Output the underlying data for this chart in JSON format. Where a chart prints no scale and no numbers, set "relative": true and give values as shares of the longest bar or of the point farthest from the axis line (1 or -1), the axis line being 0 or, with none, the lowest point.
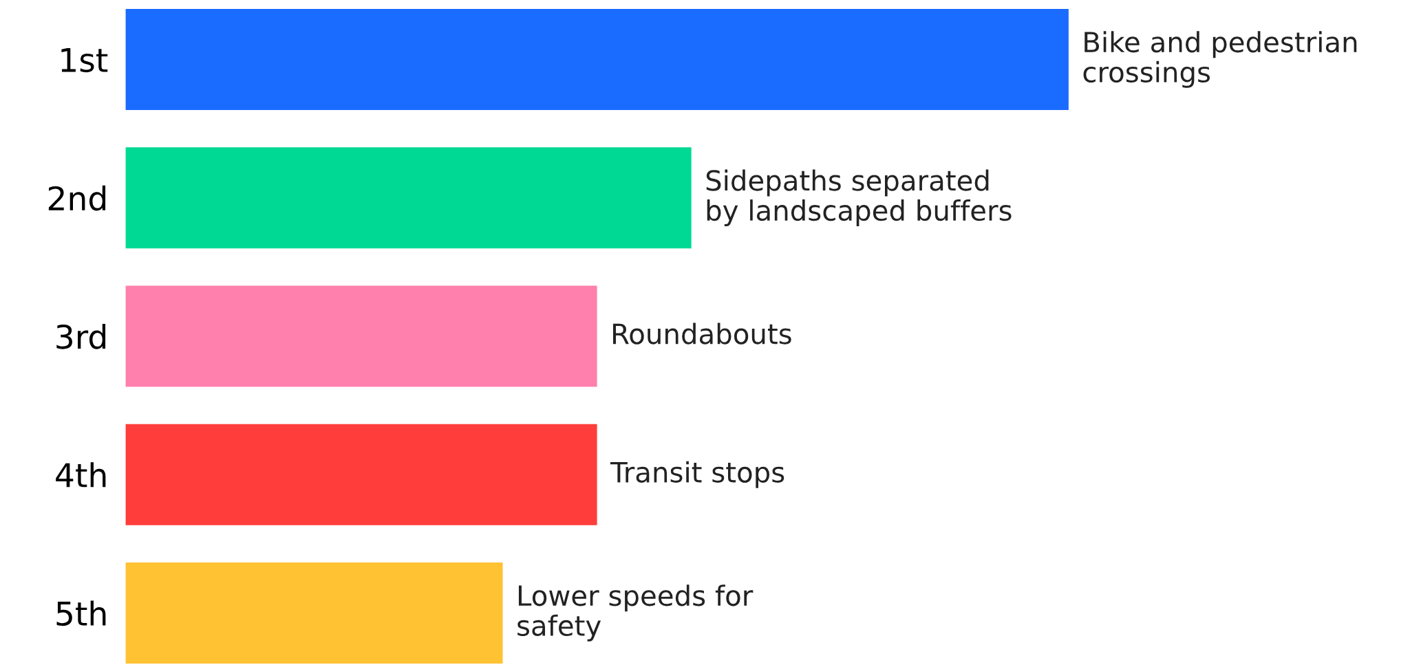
{
  "chart_data": {
    "type": "bar",
    "orientation": "horizontal",
    "relative": true,
    "categories": [
      "1st",
      "2nd",
      "3rd",
      "4th",
      "5th"
    ],
    "values": [
      1,
      0.6,
      0.5,
      0.5,
      0.4
    ],
    "colors": [
      "#1a6bff",
      "#00d993",
      "#ff80ad",
      "#ff3d3b",
      "#ffc233"
    ],
    "annotations": [
      {
        "text": "Bike and pedestrian\ncrossings",
        "x": 1,
        "y": "1st"
      },
      {
        "text": "Sidepaths separated\nby landscaped buffers",
        "x": 0.6,
        "y": "2nd"
      },
      {
        "text": "Roundabouts",
        "x": 0.5,
        "y": "3rd"
      },
      {
        "text": "Transit stops",
        "x": 0.5,
        "y": "4th"
      },
      {
        "text": "Lower speeds for\nsafety",
        "x": 0.4,
        "y": "5th"
      }
    ],
    "grid": false,
    "legend": false
  }
}
